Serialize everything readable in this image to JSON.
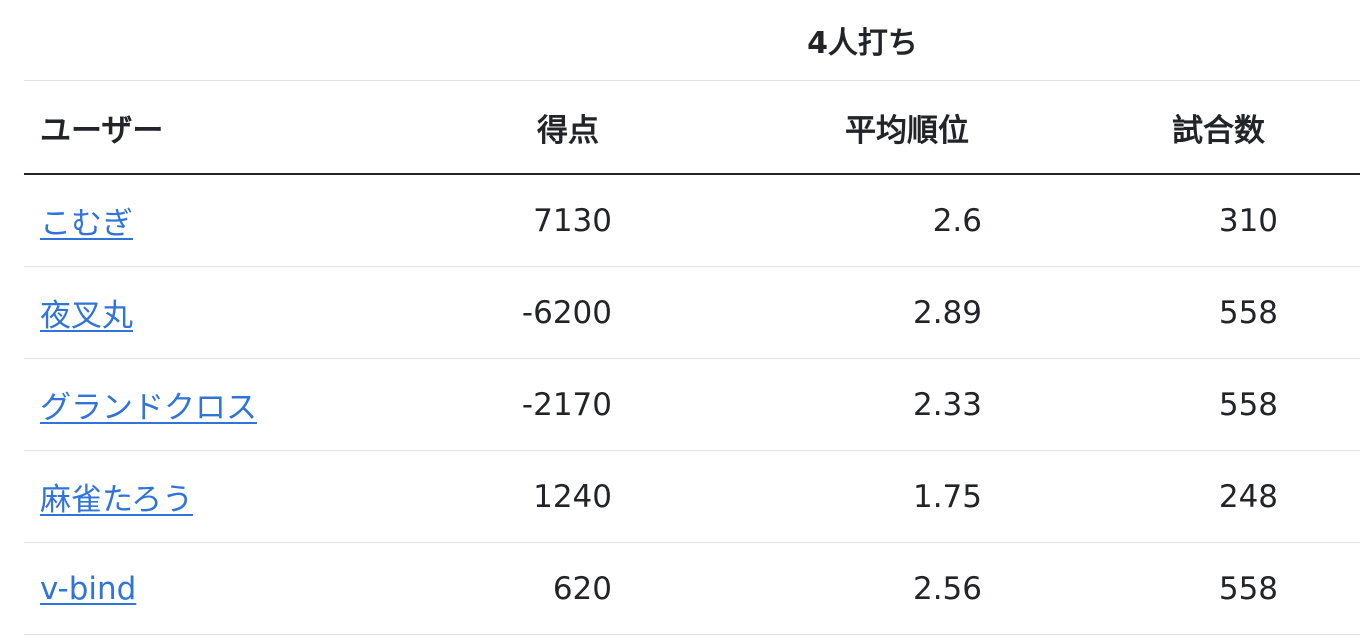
{
  "table": {
    "group_header": "4人打ち",
    "columns": {
      "user": "ユーザー",
      "score": "得点",
      "avg_rank": "平均順位",
      "games": "試合数"
    },
    "rows": [
      {
        "user": "こむぎ",
        "score": "7130",
        "avg_rank": "2.6",
        "games": "310"
      },
      {
        "user": "夜叉丸",
        "score": "-6200",
        "avg_rank": "2.89",
        "games": "558"
      },
      {
        "user": "グランドクロス",
        "score": "-2170",
        "avg_rank": "2.33",
        "games": "558"
      },
      {
        "user": "麻雀たろう",
        "score": "1240",
        "avg_rank": "1.75",
        "games": "248"
      },
      {
        "user": "v-bind",
        "score": "620",
        "avg_rank": "2.56",
        "games": "558"
      }
    ]
  },
  "colors": {
    "link": "#2f74d9",
    "text": "#212529",
    "border": "#dee2e6"
  }
}
